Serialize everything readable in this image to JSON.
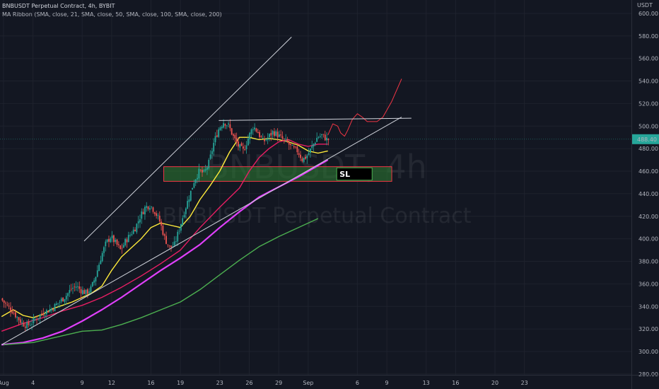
{
  "legend": {
    "title": "BNBUSDT Perpetual Contract, 4h, BYBIT",
    "indicator": "MA Ribbon (SMA, close, 21, SMA, close, 50, SMA, close, 100, SMA, close, 200)"
  },
  "watermark": {
    "line1": "BNBUSDT, 4h",
    "line2": "BNBUSDT Perpetual Contract"
  },
  "chart_data": {
    "type": "line",
    "currency_label": "USDT",
    "y_axis": {
      "ticks": [
        280,
        300,
        320,
        340,
        360,
        380,
        400,
        420,
        440,
        460,
        480,
        500,
        520,
        540,
        560,
        580,
        600
      ],
      "ylim": [
        280,
        602
      ]
    },
    "x_axis": {
      "ticks": [
        {
          "label": "Aug",
          "day": 0
        },
        {
          "label": "4",
          "day": 3
        },
        {
          "label": "9",
          "day": 8
        },
        {
          "label": "12",
          "day": 11
        },
        {
          "label": "16",
          "day": 15
        },
        {
          "label": "19",
          "day": 18
        },
        {
          "label": "23",
          "day": 22
        },
        {
          "label": "26",
          "day": 25
        },
        {
          "label": "29",
          "day": 28
        },
        {
          "label": "Sep",
          "day": 31
        },
        {
          "label": "6",
          "day": 36
        },
        {
          "label": "9",
          "day": 39
        },
        {
          "label": "13",
          "day": 43
        },
        {
          "label": "16",
          "day": 46
        },
        {
          "label": "20",
          "day": 50
        },
        {
          "label": "23",
          "day": 53
        }
      ]
    },
    "last_price": {
      "label": "488.40",
      "value": 488.4,
      "color": "#26a69a"
    },
    "price_path": [
      [
        -0.2,
        347
      ],
      [
        0.5,
        340
      ],
      [
        1,
        336
      ],
      [
        1.5,
        330
      ],
      [
        2,
        325
      ],
      [
        2.5,
        323
      ],
      [
        3,
        326
      ],
      [
        3.5,
        330
      ],
      [
        4,
        334
      ],
      [
        4.5,
        336
      ],
      [
        5,
        338
      ],
      [
        5.5,
        342
      ],
      [
        6,
        346
      ],
      [
        6.5,
        350
      ],
      [
        7,
        356
      ],
      [
        7.5,
        358
      ],
      [
        8,
        354
      ],
      [
        8.5,
        352
      ],
      [
        9,
        356
      ],
      [
        9.5,
        368
      ],
      [
        10,
        384
      ],
      [
        10.5,
        396
      ],
      [
        11,
        402
      ],
      [
        11.5,
        396
      ],
      [
        12,
        390
      ],
      [
        12.5,
        398
      ],
      [
        13,
        404
      ],
      [
        13.5,
        410
      ],
      [
        14,
        420
      ],
      [
        14.5,
        428
      ],
      [
        15,
        430
      ],
      [
        15.5,
        424
      ],
      [
        16,
        415
      ],
      [
        16.5,
        400
      ],
      [
        17,
        392
      ],
      [
        17.5,
        395
      ],
      [
        18,
        410
      ],
      [
        18.5,
        425
      ],
      [
        19,
        438
      ],
      [
        19.5,
        452
      ],
      [
        20,
        460
      ],
      [
        20.5,
        458
      ],
      [
        21,
        468
      ],
      [
        21.5,
        486
      ],
      [
        22,
        498
      ],
      [
        22.5,
        504
      ],
      [
        23,
        500
      ],
      [
        23.5,
        490
      ],
      [
        24,
        482
      ],
      [
        24.5,
        478
      ],
      [
        25,
        490
      ],
      [
        25.5,
        500
      ],
      [
        26,
        494
      ],
      [
        26.5,
        486
      ],
      [
        27,
        490
      ],
      [
        27.5,
        495
      ],
      [
        28,
        492
      ],
      [
        28.5,
        488
      ],
      [
        29,
        485
      ],
      [
        29.5,
        480
      ],
      [
        30,
        478
      ],
      [
        30.5,
        470
      ],
      [
        31,
        474
      ],
      [
        31.5,
        482
      ],
      [
        32,
        490
      ],
      [
        32.5,
        492
      ],
      [
        33,
        488
      ]
    ],
    "series": [
      {
        "name": "SMA 21",
        "color": "#ffeb3b",
        "points": [
          [
            -0.2,
            331
          ],
          [
            1,
            337
          ],
          [
            2,
            332
          ],
          [
            3,
            330
          ],
          [
            4,
            333
          ],
          [
            5,
            338
          ],
          [
            6,
            341
          ],
          [
            7,
            344
          ],
          [
            8,
            348
          ],
          [
            9,
            352
          ],
          [
            10,
            358
          ],
          [
            11,
            372
          ],
          [
            12,
            384
          ],
          [
            13,
            392
          ],
          [
            14,
            400
          ],
          [
            15,
            410
          ],
          [
            16,
            414
          ],
          [
            17,
            412
          ],
          [
            18,
            410
          ],
          [
            19,
            420
          ],
          [
            20,
            435
          ],
          [
            21,
            447
          ],
          [
            22,
            460
          ],
          [
            23,
            477
          ],
          [
            24,
            490
          ],
          [
            25,
            490
          ],
          [
            26,
            488
          ],
          [
            27,
            489
          ],
          [
            28,
            488
          ],
          [
            29,
            486
          ],
          [
            30,
            483
          ],
          [
            31,
            478
          ],
          [
            32,
            476
          ],
          [
            33,
            478
          ]
        ]
      },
      {
        "name": "SMA 50",
        "color": "#e91e63",
        "points": [
          [
            -0.2,
            318
          ],
          [
            2,
            325
          ],
          [
            4,
            330
          ],
          [
            6,
            336
          ],
          [
            8,
            341
          ],
          [
            10,
            348
          ],
          [
            12,
            357
          ],
          [
            14,
            367
          ],
          [
            16,
            378
          ],
          [
            18,
            390
          ],
          [
            20,
            410
          ],
          [
            22,
            428
          ],
          [
            24,
            445
          ],
          [
            25,
            460
          ],
          [
            26,
            472
          ],
          [
            27,
            480
          ],
          [
            28,
            486
          ],
          [
            29,
            488
          ],
          [
            30,
            484
          ],
          [
            31,
            482
          ],
          [
            32,
            484
          ],
          [
            33,
            484
          ]
        ]
      },
      {
        "name": "SMA 100",
        "color": "#e040fb",
        "points": [
          [
            -0.2,
            306
          ],
          [
            2,
            308
          ],
          [
            4,
            312
          ],
          [
            6,
            318
          ],
          [
            8,
            327
          ],
          [
            10,
            337
          ],
          [
            12,
            348
          ],
          [
            14,
            360
          ],
          [
            16,
            372
          ],
          [
            18,
            383
          ],
          [
            20,
            395
          ],
          [
            22,
            410
          ],
          [
            24,
            424
          ],
          [
            26,
            437
          ],
          [
            28,
            446
          ],
          [
            30,
            455
          ],
          [
            31,
            460
          ],
          [
            32,
            465
          ],
          [
            33,
            470
          ]
        ]
      },
      {
        "name": "SMA 200",
        "color": "#4caf50",
        "points": [
          [
            0,
            306
          ],
          [
            3,
            308
          ],
          [
            6,
            314
          ],
          [
            8,
            318
          ],
          [
            10,
            319
          ],
          [
            12,
            324
          ],
          [
            14,
            330
          ],
          [
            16,
            337
          ],
          [
            18,
            344
          ],
          [
            20,
            355
          ],
          [
            22,
            368
          ],
          [
            24,
            381
          ],
          [
            26,
            393
          ],
          [
            28,
            402
          ],
          [
            30,
            410
          ],
          [
            32,
            418
          ]
        ]
      },
      {
        "name": "Projection",
        "color": "#f23645",
        "points": [
          [
            33,
            492
          ],
          [
            33.5,
            502
          ],
          [
            34,
            500
          ],
          [
            34.3,
            494
          ],
          [
            34.7,
            491
          ],
          [
            35,
            496
          ],
          [
            35.5,
            506
          ],
          [
            36,
            511
          ],
          [
            36.5,
            508
          ],
          [
            37,
            504
          ],
          [
            38,
            504
          ],
          [
            38.6,
            508
          ],
          [
            39.5,
            522
          ],
          [
            40.5,
            542
          ]
        ]
      }
    ],
    "trendlines": [
      {
        "name": "channel-upper",
        "color": "#d1d4dc",
        "from": [
          8.2,
          398
        ],
        "to": [
          29.3,
          579
        ]
      },
      {
        "name": "channel-lower",
        "color": "#d1d4dc",
        "from": [
          -0.2,
          306
        ],
        "to": [
          40.5,
          508
        ]
      },
      {
        "name": "resistance",
        "color": "#d1d4dc",
        "from": [
          21.9,
          505
        ],
        "to": [
          41.5,
          507
        ]
      }
    ],
    "zones": [
      {
        "name": "support-zone",
        "from_day": 16.3,
        "to_day": 39.5,
        "low": 451,
        "high": 464,
        "fill": "#2e7d32",
        "stroke": "#f23645"
      },
      {
        "name": "sl-box",
        "label": "SL",
        "from_day": 33.9,
        "to_day": 37.5,
        "low": 452,
        "high": 463,
        "fill": "#000000",
        "stroke": "#4caf50"
      }
    ]
  }
}
